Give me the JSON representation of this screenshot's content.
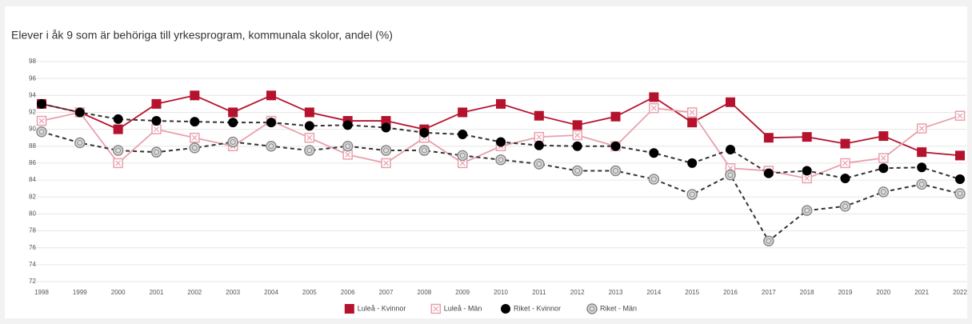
{
  "chart_data": {
    "type": "line",
    "title": "Elever i åk 9 som är behöriga till yrkesprogram, kommunala skolor, andel (%)",
    "categories": [
      "1998",
      "1999",
      "2000",
      "2001",
      "2002",
      "2003",
      "2004",
      "2005",
      "2006",
      "2007",
      "2008",
      "2009",
      "2010",
      "2011",
      "2012",
      "2013",
      "2014",
      "2015",
      "2016",
      "2017",
      "2018",
      "2019",
      "2020",
      "2021",
      "2022"
    ],
    "ylim": [
      72,
      98
    ],
    "yticks": [
      72,
      74,
      76,
      78,
      80,
      82,
      84,
      86,
      88,
      90,
      92,
      94,
      96,
      98
    ],
    "grid": true,
    "legend": "bottom",
    "series": [
      {
        "name": "Luleå - Kvinnor",
        "color": "#b5122e",
        "marker": "square",
        "dashed": false,
        "values": [
          93,
          92,
          90,
          93,
          94,
          92,
          94,
          92,
          91,
          91,
          90,
          92,
          93,
          91.6,
          90.5,
          91.5,
          93.8,
          90.8,
          93.2,
          89,
          89.1,
          88.3,
          89.2,
          87.3,
          86.9
        ]
      },
      {
        "name": "Luleå - Män",
        "color": "#e8a0ad",
        "marker": "open-square",
        "dashed": false,
        "values": [
          91,
          92,
          86,
          90,
          89,
          88,
          91,
          89,
          87,
          86,
          89,
          86,
          88,
          89.1,
          89.3,
          88,
          92.5,
          92,
          85.4,
          85.1,
          84.2,
          86,
          86.6,
          90.1,
          91.6
        ]
      },
      {
        "name": "Riket - Kvinnor",
        "color": "#000000",
        "marker": "circle",
        "dashed": true,
        "values": [
          93,
          92,
          91.2,
          91,
          90.9,
          90.8,
          90.8,
          90.4,
          90.5,
          90.2,
          89.6,
          89.4,
          88.5,
          88.1,
          88,
          88,
          87.2,
          86,
          87.6,
          84.8,
          85.1,
          84.2,
          85.4,
          85.5,
          84.1
        ]
      },
      {
        "name": "Riket - Män",
        "color": "#888888",
        "marker": "open-circle",
        "dashed": true,
        "values": [
          89.7,
          88.4,
          87.5,
          87.3,
          87.8,
          88.5,
          88,
          87.5,
          88,
          87.5,
          87.5,
          86.9,
          86.4,
          85.9,
          85.1,
          85.1,
          84.1,
          82.3,
          84.6,
          76.8,
          80.4,
          80.9,
          82.6,
          83.5,
          82.4
        ]
      }
    ]
  }
}
